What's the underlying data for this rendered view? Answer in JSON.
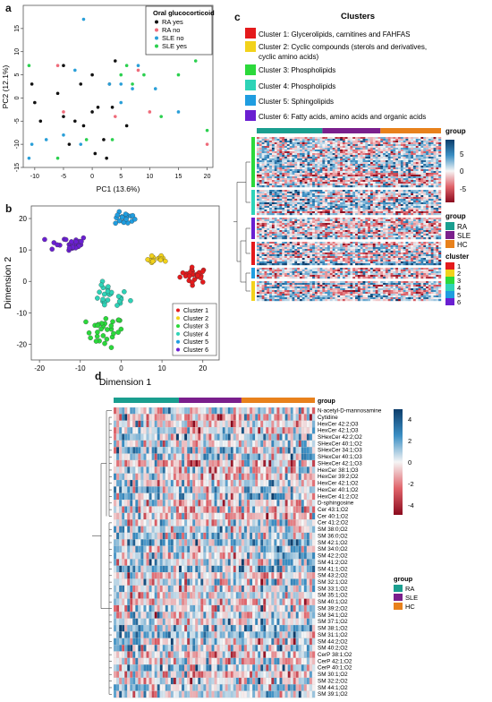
{
  "panel_letters": {
    "a": "a",
    "b": "b",
    "c": "c",
    "d": "d"
  },
  "colors": {
    "ra": "#1a9e8f",
    "sle": "#7a1f8c",
    "hc": "#e8811c",
    "c1": "#e41a1c",
    "c2": "#f2d21b",
    "c3": "#2bd93b",
    "c4": "#2ed3b7",
    "c5": "#1f9de0",
    "c6": "#6a1fd1",
    "heat_pos": "#0d3d6b",
    "heat_neg": "#8b0a1e"
  },
  "panel_a": {
    "legend_title": "Oral glucocorticoid",
    "legend": [
      {
        "label": "RA yes",
        "color": "#111111"
      },
      {
        "label": "RA no",
        "color": "#ef6b7a"
      },
      {
        "label": "SLE no",
        "color": "#2a9fd8"
      },
      {
        "label": "SLE yes",
        "color": "#2bd04f"
      }
    ]
  },
  "panel_b": {
    "legend": [
      "Cluster 1",
      "Cluster 2",
      "Cluster 3",
      "Cluster 4",
      "Cluster 5",
      "Cluster 6"
    ]
  },
  "panel_c": {
    "title": "Clusters",
    "cluster_legend": [
      "Cluster 1: Glycerolipids, carnitines and FAHFAS",
      "Cluster 2: Cyclic compounds (sterols and derivatives,",
      "cyclic amino acids)",
      "Cluster 3: Phospholipids",
      "Cluster 4: Phospholipids",
      "Cluster 5: Sphingolipids",
      "Cluster 6: Fatty acids, amino acids and organic acids"
    ],
    "scale_title": "group",
    "scale_ticks": [
      "5",
      "0",
      "-5"
    ],
    "group_title": "group",
    "groups": [
      "RA",
      "SLE",
      "HC"
    ],
    "cluster_title": "cluster",
    "clusters": [
      "1",
      "2",
      "3",
      "4",
      "5",
      "6"
    ]
  },
  "panel_d": {
    "top_label": "group",
    "rows": [
      "N-acetyl-D-mannosamine",
      "Cytidine",
      "HexCer 42:2;O3",
      "HexCer 42:1;O3",
      "SHexCer 42:2;O2",
      "SHexCer 40:1;O2",
      "SHexCer 34:1;O3",
      "SHexCer 40:1;O3",
      "SHexCer 42:1;O3",
      "HexCer 38:1;O3",
      "HexCer 39:2;O2",
      "HexCer 42:1;O2",
      "HexCer 40:1;O2",
      "HexCer 41:2;O2",
      "D-sphingosine",
      "Cer 43:1;O2",
      "Cer 40:1;O2",
      "Cer 41:2;O2",
      "SM 38:0;O2",
      "SM 36:0;O2",
      "SM 42:1;O2",
      "SM 34:0;O2",
      "SM 42:2;O2",
      "SM 41:2;O2",
      "SM 41:1;O2",
      "SM 43:2;O2",
      "SM 32:1;O2",
      "SM 33:1;O2",
      "SM 35:1;O2",
      "SM 40:1;O2",
      "SM 39:2;O2",
      "SM 34:1;O2",
      "SM 37:1;O2",
      "SM 38:1;O2",
      "SM 31:1;O2",
      "SM 44:2;O2",
      "SM 40:2;O2",
      "CerP 38:1;O2",
      "CerP 42:1;O2",
      "CerP 40:1;O2",
      "SM 30:1;O2",
      "SM 32:2;O2",
      "SM 44:1;O2",
      "SM 39:1;O2"
    ],
    "scale_ticks": [
      "4",
      "2",
      "0",
      "-2",
      "-4"
    ],
    "group_title": "group",
    "groups": [
      "RA",
      "SLE",
      "HC"
    ]
  },
  "chart_data": [
    {
      "type": "scatter",
      "title": "",
      "xlabel": "PC1 (13.6%)",
      "ylabel": "PC2 (12.1%)",
      "xlim": [
        -12,
        21
      ],
      "ylim": [
        -15,
        20
      ],
      "xticks": [
        "-10",
        "-5",
        "0",
        "5",
        "10",
        "15",
        "20"
      ],
      "yticks": [
        "-15",
        "-10",
        "-5",
        "0",
        "5",
        "10",
        "15"
      ],
      "series": [
        {
          "name": "RA yes",
          "points": [
            [
              -10.5,
              3
            ],
            [
              -10,
              -1
            ],
            [
              -9,
              -5
            ],
            [
              -6,
              1
            ],
            [
              -5,
              -4
            ],
            [
              -4,
              -10
            ],
            [
              -3,
              -5
            ],
            [
              -2,
              3
            ],
            [
              -1.5,
              -6
            ],
            [
              0,
              -3
            ],
            [
              0,
              5
            ],
            [
              1,
              -2
            ],
            [
              2,
              -9
            ],
            [
              2.5,
              -13
            ],
            [
              3,
              3
            ],
            [
              4,
              8
            ],
            [
              6,
              -6
            ],
            [
              -5,
              7
            ],
            [
              0.5,
              -12
            ],
            [
              3.5,
              -2
            ]
          ]
        },
        {
          "name": "RA no",
          "points": [
            [
              -6,
              7
            ],
            [
              -5,
              -3
            ],
            [
              4,
              -4
            ],
            [
              8,
              6
            ],
            [
              10,
              -3
            ],
            [
              20,
              -10
            ]
          ]
        },
        {
          "name": "SLE no",
          "points": [
            [
              -11,
              -13
            ],
            [
              -10.5,
              -10
            ],
            [
              -8,
              -9
            ],
            [
              -5,
              -8
            ],
            [
              -2,
              -10
            ],
            [
              -1.5,
              17
            ],
            [
              3,
              3
            ],
            [
              5,
              3
            ],
            [
              7,
              2
            ],
            [
              8,
              7
            ],
            [
              11,
              2
            ],
            [
              15,
              -3
            ],
            [
              5,
              -1
            ],
            [
              -3,
              6
            ]
          ]
        },
        {
          "name": "SLE yes",
          "points": [
            [
              -11,
              7
            ],
            [
              -6,
              -13
            ],
            [
              -1,
              -9
            ],
            [
              3.5,
              -9
            ],
            [
              5,
              5
            ],
            [
              6,
              7
            ],
            [
              7,
              3
            ],
            [
              9,
              5
            ],
            [
              12,
              -4
            ],
            [
              15,
              5
            ],
            [
              18,
              8
            ],
            [
              20,
              -7
            ]
          ]
        }
      ]
    },
    {
      "type": "scatter",
      "title": "",
      "xlabel": "Dimension 1",
      "ylabel": "Dimension 2",
      "xlim": [
        -22,
        24
      ],
      "ylim": [
        -25,
        24
      ],
      "xticks": [
        "-20",
        "-10",
        "0",
        "10",
        "20"
      ],
      "yticks": [
        "-20",
        "-10",
        "0",
        "10",
        "20"
      ],
      "clusters": [
        {
          "name": "Cluster 1",
          "center": [
            18,
            2
          ],
          "spread": [
            3.5,
            2.5
          ],
          "n": 26
        },
        {
          "name": "Cluster 2",
          "center": [
            9,
            7
          ],
          "spread": [
            2.5,
            1.5
          ],
          "n": 14
        },
        {
          "name": "Cluster 3",
          "center": [
            -4,
            -16
          ],
          "spread": [
            4.5,
            5
          ],
          "n": 30
        },
        {
          "name": "Cluster 4",
          "center": [
            -3,
            -5
          ],
          "spread": [
            5,
            4
          ],
          "n": 26
        },
        {
          "name": "Cluster 5",
          "center": [
            1,
            20
          ],
          "spread": [
            2.5,
            2
          ],
          "n": 18
        },
        {
          "name": "Cluster 6",
          "center": [
            -13,
            12
          ],
          "spread": [
            5,
            2.5
          ],
          "n": 28
        }
      ]
    },
    {
      "type": "heatmap",
      "title": "",
      "row_clusters": [
        {
          "cluster": "3",
          "rows": 28
        },
        {
          "cluster": "4",
          "rows": 14
        },
        {
          "cluster": "6",
          "rows": 12
        },
        {
          "cluster": "1",
          "rows": 13
        },
        {
          "cluster": "5",
          "rows": 6
        },
        {
          "cluster": "2",
          "rows": 11
        }
      ],
      "column_groups": [
        {
          "group": "RA",
          "cols": 26
        },
        {
          "group": "SLE",
          "cols": 23
        },
        {
          "group": "HC",
          "cols": 24
        }
      ],
      "value_range": [
        -7,
        7
      ]
    },
    {
      "type": "heatmap",
      "title": "",
      "rows": 44,
      "column_groups": [
        {
          "group": "RA",
          "cols": 24
        },
        {
          "group": "SLE",
          "cols": 23
        },
        {
          "group": "HC",
          "cols": 27
        }
      ],
      "value_range": [
        -5,
        5
      ]
    }
  ]
}
